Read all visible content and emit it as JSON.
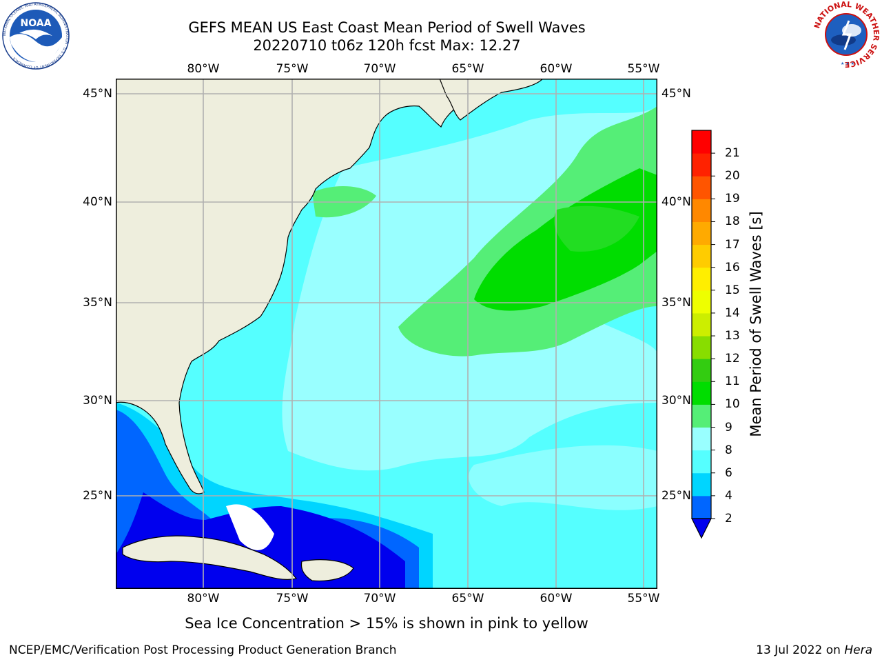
{
  "title": {
    "line1": "GEFS MEAN US East Coast Mean Period of Swell Waves",
    "line2": "20220710 t06z 120h fcst   Max: 12.27"
  },
  "map": {
    "lon_ticks": [
      "80°W",
      "75°W",
      "70°W",
      "65°W",
      "60°W",
      "55°W"
    ],
    "lat_ticks": [
      "45°N",
      "40°N",
      "35°N",
      "30°N",
      "25°N"
    ],
    "land_color": "#eeeedd",
    "grid_color": "#b0b0b0"
  },
  "colorbar": {
    "label": "Mean Period of Swell Waves [s]",
    "levels": [
      "2",
      "4",
      "6",
      "8",
      "9",
      "10",
      "11",
      "12",
      "13",
      "14",
      "15",
      "16",
      "17",
      "18",
      "19",
      "20",
      "21"
    ],
    "colors": [
      "#0066ff",
      "#00d5ff",
      "#55ffff",
      "#99ffff",
      "#55ee77",
      "#00dd00",
      "#33cc11",
      "#88dd00",
      "#ccee00",
      "#eeff00",
      "#ffee00",
      "#ffcc00",
      "#ffaa00",
      "#ff8800",
      "#ff5500",
      "#ff2200",
      "#ff0000"
    ],
    "under_color": "#0000ee"
  },
  "note": "Sea Ice Concentration > 15% is shown in pink to yellow",
  "footer": {
    "left": "NCEP/EMC/Verification Post Processing Product Generation Branch",
    "right_date": "13 Jul 2022 on ",
    "right_host": "Hera"
  },
  "logos": {
    "noaa_text": "NOAA",
    "noaa_ring": "NATIONAL OCEANIC AND ATMOSPHERIC ADMINISTRATION · U.S. DEPARTMENT OF COMMERCE ·",
    "nws_ring": "NATIONAL WEATHER SERVICE"
  }
}
